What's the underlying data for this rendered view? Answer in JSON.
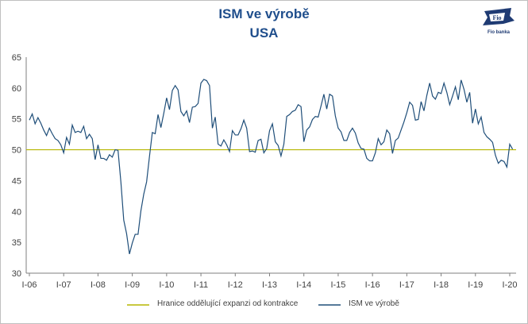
{
  "title": "ISM ve výrobě",
  "subtitle": "USA",
  "logo": {
    "brand_text": "Fio banka",
    "mark": "Fio"
  },
  "legend": {
    "threshold_label": "Hranice oddělující expanzi od kontrakce",
    "series_label": "ISM ve výrobě"
  },
  "colors": {
    "series": "#1f4e79",
    "threshold": "#b5b500",
    "title": "#1f4e8c"
  },
  "chart_data": {
    "type": "line",
    "title": "ISM ve výrobě",
    "subtitle": "USA",
    "ylim": [
      30,
      65
    ],
    "yticks": [
      30,
      35,
      40,
      45,
      50,
      55,
      60,
      65
    ],
    "xtick_labels": [
      "I-06",
      "I-07",
      "I-08",
      "I-09",
      "I-10",
      "I-11",
      "I-12",
      "I-13",
      "I-14",
      "I-15",
      "I-16",
      "I-17",
      "I-18",
      "I-19",
      "I-20"
    ],
    "grid": false,
    "legend_position": "bottom",
    "threshold": {
      "name": "Hranice oddělující expanzi od kontrakce",
      "value": 50
    },
    "series": [
      {
        "name": "ISM ve výrobě",
        "start": "2006-01",
        "frequency": "monthly",
        "values": [
          54.8,
          55.8,
          54.2,
          55.2,
          54.3,
          53.2,
          52.3,
          53.5,
          52.6,
          51.8,
          51.5,
          50.8,
          49.5,
          52.0,
          50.9,
          54.0,
          52.8,
          53.0,
          52.8,
          53.8,
          51.8,
          52.5,
          51.8,
          48.4,
          50.8,
          48.6,
          48.6,
          48.3,
          49.2,
          48.8,
          50.0,
          49.9,
          44.8,
          38.6,
          36.4,
          33.1,
          34.9,
          36.3,
          36.3,
          40.1,
          42.8,
          44.8,
          48.9,
          52.8,
          52.6,
          55.7,
          53.6,
          55.9,
          58.4,
          56.5,
          59.6,
          60.4,
          59.7,
          56.2,
          55.5,
          56.3,
          54.4,
          56.9,
          57.0,
          57.5,
          60.8,
          61.4,
          61.2,
          60.4,
          53.5,
          55.3,
          50.9,
          50.6,
          51.6,
          50.8,
          49.7,
          53.1,
          52.4,
          52.4,
          53.4,
          54.8,
          53.5,
          49.7,
          49.8,
          49.6,
          51.5,
          51.7,
          49.5,
          50.2,
          53.1,
          54.2,
          51.3,
          50.7,
          49.0,
          50.9,
          55.4,
          55.7,
          56.2,
          56.4,
          57.3,
          57.0,
          51.3,
          53.2,
          53.7,
          54.9,
          55.4,
          55.3,
          57.1,
          59.0,
          56.6,
          59.0,
          58.7,
          55.5,
          53.5,
          52.9,
          51.5,
          51.5,
          52.8,
          53.5,
          52.7,
          51.1,
          50.2,
          50.1,
          48.6,
          48.2,
          48.2,
          49.5,
          51.8,
          50.8,
          51.3,
          53.2,
          52.6,
          49.4,
          51.5,
          51.9,
          53.2,
          54.5,
          56.0,
          57.7,
          57.2,
          54.8,
          54.9,
          57.8,
          56.3,
          58.8,
          60.8,
          58.7,
          58.2,
          59.3,
          59.1,
          60.8,
          59.3,
          57.3,
          58.7,
          60.2,
          58.1,
          61.3,
          59.8,
          57.7,
          59.3,
          54.3,
          56.6,
          54.2,
          55.3,
          52.8,
          52.1,
          51.7,
          51.2,
          49.1,
          47.8,
          48.3,
          48.1,
          47.2,
          50.9,
          50.1
        ]
      }
    ]
  }
}
